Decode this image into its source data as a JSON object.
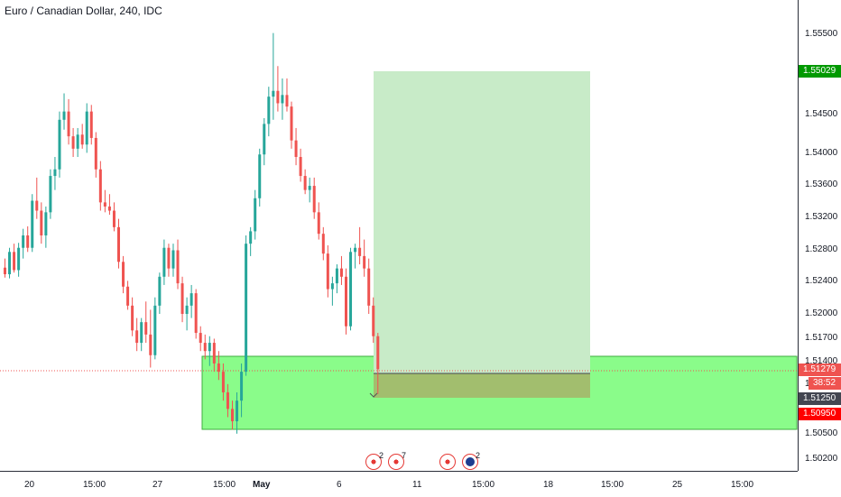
{
  "symbol": {
    "title": "Euro / Canadian Dollar, 240, IDC"
  },
  "price_axis": {
    "labels": [
      "1.55500",
      "1.55029",
      "1.54500",
      "1.54000",
      "1.53600",
      "1.53200",
      "1.52800",
      "1.52400",
      "1.52000",
      "1.51700",
      "1.51400",
      "1.51279",
      "1.5",
      "38:52",
      "1.51250",
      "1.50950",
      "1.50500",
      "1.50200"
    ]
  },
  "price_tags": {
    "target": "1.55029",
    "current": "1.51279",
    "countdown": "38:52",
    "entry": "1.51250",
    "stop": "1.50950"
  },
  "time_axis": {
    "labels": [
      "20",
      "15:00",
      "27",
      "15:00",
      "May",
      "6",
      "11",
      "15:00",
      "18",
      "15:00",
      "25",
      "15:00"
    ]
  },
  "events": {
    "ca_a_count": "2",
    "ca_b_count": "7",
    "eu_count": "2"
  },
  "colors": {
    "up": "#26a69a",
    "down": "#ef5350",
    "target_zone": "#c8ebc8",
    "stop_zone": "#a4b76a",
    "demand_zone": "#7dfc7d",
    "axis": "#2a2e39",
    "tag_target": "#009900",
    "tag_current": "#ef5350",
    "tag_entry": "#434651",
    "tag_stop": "#ff0000"
  },
  "chart_data": {
    "type": "candlestick",
    "y_range": [
      1.5005,
      1.5575
    ],
    "current_price": 1.51279,
    "position": {
      "direction": "long",
      "entry": 1.5125,
      "target": 1.55029,
      "stop": 1.5095
    },
    "demand_zone": {
      "top": 1.5142,
      "bottom": 1.5055
    },
    "candles_ohlc": [
      [
        1.5251,
        1.5262,
        1.5239,
        1.5243
      ],
      [
        1.5243,
        1.5275,
        1.5238,
        1.527
      ],
      [
        1.527,
        1.528,
        1.5245,
        1.5248
      ],
      [
        1.5248,
        1.5281,
        1.524,
        1.5275
      ],
      [
        1.5275,
        1.5298,
        1.5262,
        1.529
      ],
      [
        1.529,
        1.5301,
        1.527,
        1.5275
      ],
      [
        1.5275,
        1.534,
        1.527,
        1.5332
      ],
      [
        1.5332,
        1.536,
        1.531,
        1.532
      ],
      [
        1.532,
        1.533,
        1.528,
        1.529
      ],
      [
        1.529,
        1.5325,
        1.5275,
        1.5318
      ],
      [
        1.5318,
        1.537,
        1.531,
        1.5362
      ],
      [
        1.5362,
        1.5385,
        1.5345,
        1.537
      ],
      [
        1.537,
        1.544,
        1.536,
        1.543
      ],
      [
        1.543,
        1.5462,
        1.5418,
        1.544
      ],
      [
        1.544,
        1.5455,
        1.54,
        1.541
      ],
      [
        1.541,
        1.542,
        1.5385,
        1.5395
      ],
      [
        1.5395,
        1.542,
        1.5385,
        1.5412
      ],
      [
        1.5412,
        1.5425,
        1.5395,
        1.54
      ],
      [
        1.54,
        1.545,
        1.539,
        1.544
      ],
      [
        1.544,
        1.5448,
        1.54,
        1.5408
      ],
      [
        1.5408,
        1.5415,
        1.536,
        1.537
      ],
      [
        1.537,
        1.538,
        1.532,
        1.533
      ],
      [
        1.533,
        1.5345,
        1.5318,
        1.5325
      ],
      [
        1.5325,
        1.534,
        1.5315,
        1.532
      ],
      [
        1.532,
        1.533,
        1.5295,
        1.53
      ],
      [
        1.53,
        1.531,
        1.525,
        1.5258
      ],
      [
        1.5258,
        1.5265,
        1.522,
        1.5228
      ],
      [
        1.5228,
        1.5235,
        1.52,
        1.5205
      ],
      [
        1.5205,
        1.5215,
        1.5168,
        1.5175
      ],
      [
        1.5175,
        1.519,
        1.515,
        1.516
      ],
      [
        1.516,
        1.519,
        1.515,
        1.5185
      ],
      [
        1.5185,
        1.521,
        1.516,
        1.517
      ],
      [
        1.517,
        1.52,
        1.513,
        1.5145
      ],
      [
        1.5145,
        1.5215,
        1.514,
        1.5205
      ],
      [
        1.5205,
        1.5245,
        1.5195,
        1.524
      ],
      [
        1.524,
        1.5285,
        1.523,
        1.5275
      ],
      [
        1.5275,
        1.528,
        1.524,
        1.525
      ],
      [
        1.525,
        1.528,
        1.524,
        1.5272
      ],
      [
        1.5272,
        1.5285,
        1.5225,
        1.5232
      ],
      [
        1.5232,
        1.524,
        1.5185,
        1.5195
      ],
      [
        1.5195,
        1.5215,
        1.5175,
        1.5205
      ],
      [
        1.5205,
        1.523,
        1.519,
        1.522
      ],
      [
        1.522,
        1.5225,
        1.5165,
        1.5172
      ],
      [
        1.5172,
        1.518,
        1.515,
        1.516
      ],
      [
        1.516,
        1.517,
        1.514,
        1.515
      ],
      [
        1.515,
        1.5168,
        1.5132,
        1.516
      ],
      [
        1.516,
        1.5165,
        1.5125,
        1.5135
      ],
      [
        1.5135,
        1.515,
        1.5115,
        1.5125
      ],
      [
        1.5125,
        1.5135,
        1.509,
        1.51
      ],
      [
        1.51,
        1.511,
        1.507,
        1.508
      ],
      [
        1.508,
        1.509,
        1.5055,
        1.5065
      ],
      [
        1.5065,
        1.51,
        1.505,
        1.509
      ],
      [
        1.509,
        1.5135,
        1.507,
        1.5125
      ],
      [
        1.5125,
        1.529,
        1.512,
        1.528
      ],
      [
        1.528,
        1.53,
        1.5265,
        1.5295
      ],
      [
        1.5295,
        1.5345,
        1.5285,
        1.5335
      ],
      [
        1.5335,
        1.5395,
        1.5325,
        1.5388
      ],
      [
        1.5388,
        1.5432,
        1.5375,
        1.5425
      ],
      [
        1.5425,
        1.547,
        1.541,
        1.5458
      ],
      [
        1.5458,
        1.5535,
        1.543,
        1.5465
      ],
      [
        1.5465,
        1.5495,
        1.544,
        1.545
      ],
      [
        1.545,
        1.548,
        1.543,
        1.546
      ],
      [
        1.546,
        1.548,
        1.544,
        1.5446
      ],
      [
        1.5446,
        1.5452,
        1.5395,
        1.5405
      ],
      [
        1.5405,
        1.542,
        1.5375,
        1.5385
      ],
      [
        1.5385,
        1.5395,
        1.5355,
        1.5362
      ],
      [
        1.5362,
        1.537,
        1.534,
        1.5345
      ],
      [
        1.5345,
        1.536,
        1.533,
        1.535
      ],
      [
        1.535,
        1.536,
        1.531,
        1.5318
      ],
      [
        1.5318,
        1.533,
        1.5285,
        1.5292
      ],
      [
        1.5292,
        1.53,
        1.526,
        1.5268
      ],
      [
        1.5268,
        1.5278,
        1.5215,
        1.5225
      ],
      [
        1.5225,
        1.524,
        1.5205,
        1.5232
      ],
      [
        1.5232,
        1.5255,
        1.522,
        1.525
      ],
      [
        1.525,
        1.5265,
        1.523,
        1.524
      ],
      [
        1.524,
        1.525,
        1.517,
        1.518
      ],
      [
        1.518,
        1.5275,
        1.5175,
        1.527
      ],
      [
        1.527,
        1.528,
        1.525,
        1.5275
      ],
      [
        1.5275,
        1.53,
        1.5255,
        1.5265
      ],
      [
        1.5265,
        1.5285,
        1.524,
        1.525
      ],
      [
        1.525,
        1.5262,
        1.5195,
        1.5205
      ],
      [
        1.5205,
        1.5215,
        1.516,
        1.5168
      ],
      [
        1.5168,
        1.5172,
        1.5098,
        1.5128
      ]
    ]
  }
}
